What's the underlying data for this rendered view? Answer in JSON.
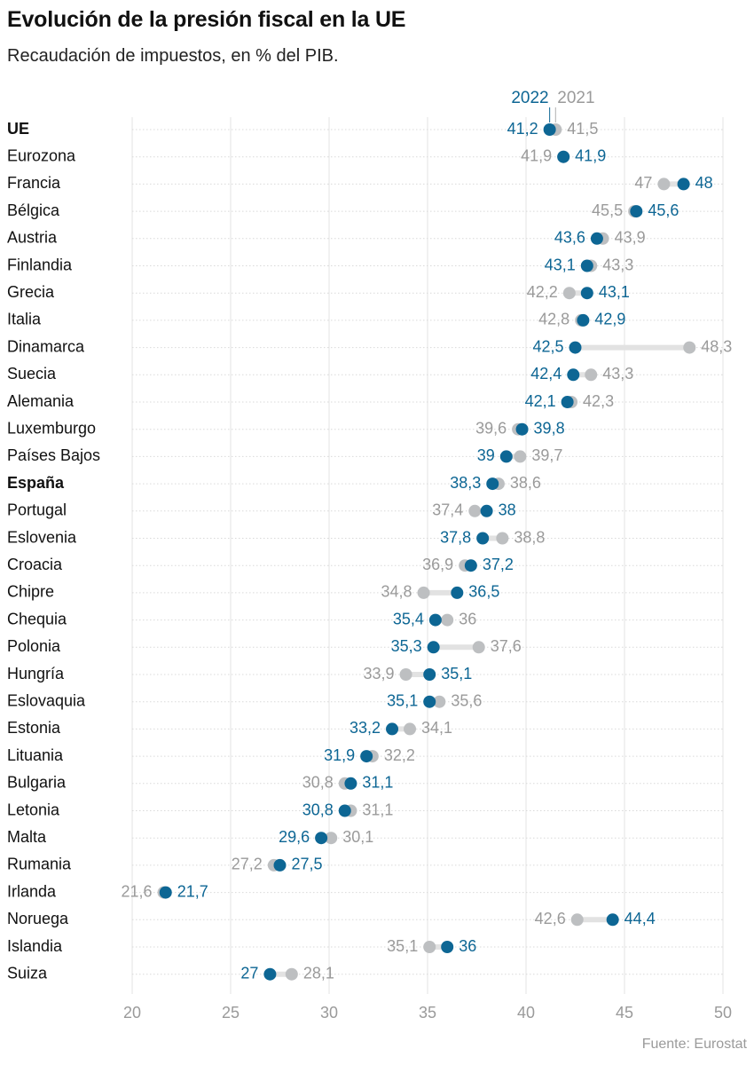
{
  "title": "Evolución de la presión fiscal en la UE",
  "subtitle": "Recaudación de impuestos, en % del PIB.",
  "source": "Fuente: Eurostat",
  "colors": {
    "y2022": "#0d6694",
    "y2021": "#bdbfc1",
    "connector": "#e2e2e2",
    "grid": "#d9d9d9",
    "label": "#111111",
    "tick": "#9a9a9a"
  },
  "chart_data": {
    "type": "dumbbell",
    "title": "Evolución de la presión fiscal en la UE",
    "subtitle": "Recaudación de impuestos, en % del PIB.",
    "xlim": [
      20,
      50
    ],
    "xticks": [
      20,
      25,
      30,
      35,
      40,
      45,
      50
    ],
    "legend": {
      "series_2022": "2022",
      "series_2021": "2021",
      "placement": "top"
    },
    "series": [
      {
        "name": "2022",
        "color": "#0d6694"
      },
      {
        "name": "2021",
        "color": "#bdbfc1"
      }
    ],
    "rows": [
      {
        "country": "UE",
        "bold": true,
        "v2022": 41.2,
        "v2021": 41.5,
        "l2022": "41,2",
        "l2021": "41,5"
      },
      {
        "country": "Eurozona",
        "bold": false,
        "v2022": 41.9,
        "v2021": 41.9,
        "l2022": "41,9",
        "l2021": "41,9"
      },
      {
        "country": "Francia",
        "bold": false,
        "v2022": 48,
        "v2021": 47,
        "l2022": "48",
        "l2021": "47"
      },
      {
        "country": "Bélgica",
        "bold": false,
        "v2022": 45.6,
        "v2021": 45.5,
        "l2022": "45,6",
        "l2021": "45,5"
      },
      {
        "country": "Austria",
        "bold": false,
        "v2022": 43.6,
        "v2021": 43.9,
        "l2022": "43,6",
        "l2021": "43,9"
      },
      {
        "country": "Finlandia",
        "bold": false,
        "v2022": 43.1,
        "v2021": 43.3,
        "l2022": "43,1",
        "l2021": "43,3"
      },
      {
        "country": "Grecia",
        "bold": false,
        "v2022": 43.1,
        "v2021": 42.2,
        "l2022": "43,1",
        "l2021": "42,2"
      },
      {
        "country": "Italia",
        "bold": false,
        "v2022": 42.9,
        "v2021": 42.8,
        "l2022": "42,9",
        "l2021": "42,8"
      },
      {
        "country": "Dinamarca",
        "bold": false,
        "v2022": 42.5,
        "v2021": 48.3,
        "l2022": "42,5",
        "l2021": "48,3"
      },
      {
        "country": "Suecia",
        "bold": false,
        "v2022": 42.4,
        "v2021": 43.3,
        "l2022": "42,4",
        "l2021": "43,3"
      },
      {
        "country": "Alemania",
        "bold": false,
        "v2022": 42.1,
        "v2021": 42.3,
        "l2022": "42,1",
        "l2021": "42,3"
      },
      {
        "country": "Luxemburgo",
        "bold": false,
        "v2022": 39.8,
        "v2021": 39.6,
        "l2022": "39,8",
        "l2021": "39,6"
      },
      {
        "country": "Países Bajos",
        "bold": false,
        "v2022": 39,
        "v2021": 39.7,
        "l2022": "39",
        "l2021": "39,7"
      },
      {
        "country": "España",
        "bold": true,
        "v2022": 38.3,
        "v2021": 38.6,
        "l2022": "38,3",
        "l2021": "38,6"
      },
      {
        "country": "Portugal",
        "bold": false,
        "v2022": 38,
        "v2021": 37.4,
        "l2022": "38",
        "l2021": "37,4"
      },
      {
        "country": "Eslovenia",
        "bold": false,
        "v2022": 37.8,
        "v2021": 38.8,
        "l2022": "37,8",
        "l2021": "38,8"
      },
      {
        "country": "Croacia",
        "bold": false,
        "v2022": 37.2,
        "v2021": 36.9,
        "l2022": "37,2",
        "l2021": "36,9"
      },
      {
        "country": "Chipre",
        "bold": false,
        "v2022": 36.5,
        "v2021": 34.8,
        "l2022": "36,5",
        "l2021": "34,8"
      },
      {
        "country": "Chequia",
        "bold": false,
        "v2022": 35.4,
        "v2021": 36,
        "l2022": "35,4",
        "l2021": "36"
      },
      {
        "country": "Polonia",
        "bold": false,
        "v2022": 35.3,
        "v2021": 37.6,
        "l2022": "35,3",
        "l2021": "37,6"
      },
      {
        "country": "Hungría",
        "bold": false,
        "v2022": 35.1,
        "v2021": 33.9,
        "l2022": "35,1",
        "l2021": "33,9"
      },
      {
        "country": "Eslovaquia",
        "bold": false,
        "v2022": 35.1,
        "v2021": 35.6,
        "l2022": "35,1",
        "l2021": "35,6"
      },
      {
        "country": "Estonia",
        "bold": false,
        "v2022": 33.2,
        "v2021": 34.1,
        "l2022": "33,2",
        "l2021": "34,1"
      },
      {
        "country": "Lituania",
        "bold": false,
        "v2022": 31.9,
        "v2021": 32.2,
        "l2022": "31,9",
        "l2021": "32,2"
      },
      {
        "country": "Bulgaria",
        "bold": false,
        "v2022": 31.1,
        "v2021": 30.8,
        "l2022": "31,1",
        "l2021": "30,8"
      },
      {
        "country": "Letonia",
        "bold": false,
        "v2022": 30.8,
        "v2021": 31.1,
        "l2022": "30,8",
        "l2021": "31,1"
      },
      {
        "country": "Malta",
        "bold": false,
        "v2022": 29.6,
        "v2021": 30.1,
        "l2022": "29,6",
        "l2021": "30,1"
      },
      {
        "country": "Rumania",
        "bold": false,
        "v2022": 27.5,
        "v2021": 27.2,
        "l2022": "27,5",
        "l2021": "27,2"
      },
      {
        "country": "Irlanda",
        "bold": false,
        "v2022": 21.7,
        "v2021": 21.6,
        "l2022": "21,7",
        "l2021": "21,6"
      },
      {
        "country": "Noruega",
        "bold": false,
        "v2022": 44.4,
        "v2021": 42.6,
        "l2022": "44,4",
        "l2021": "42,6"
      },
      {
        "country": "Islandia",
        "bold": false,
        "v2022": 36,
        "v2021": 35.1,
        "l2022": "36",
        "l2021": "35,1"
      },
      {
        "country": "Suiza",
        "bold": false,
        "v2022": 27,
        "v2021": 28.1,
        "l2022": "27",
        "l2021": "28,1"
      }
    ]
  }
}
